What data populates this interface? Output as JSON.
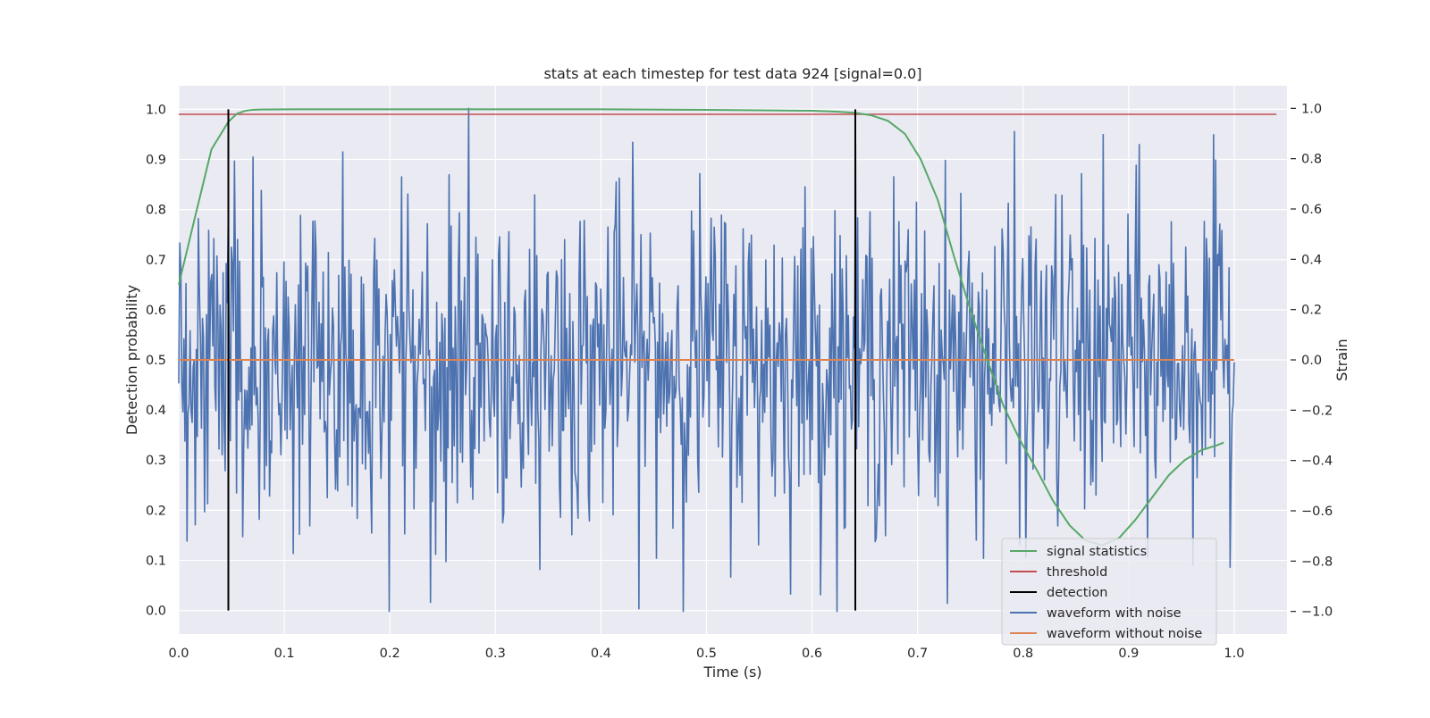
{
  "chart_data": {
    "type": "line",
    "title": "stats at each timestep for test data 924 [signal=0.0]",
    "xlabel": "Time (s)",
    "ylabel_left": "Detection probability",
    "ylabel_right": "Strain",
    "xlim": [
      0.0,
      1.05
    ],
    "ylim_left": [
      -0.047,
      1.047
    ],
    "ylim_right": [
      -1.09,
      1.09
    ],
    "x_ticks": [
      0.0,
      0.1,
      0.2,
      0.3,
      0.4,
      0.5,
      0.6,
      0.7,
      0.8,
      0.9,
      1.0
    ],
    "x_tick_labels": [
      "0.0",
      "0.1",
      "0.2",
      "0.3",
      "0.4",
      "0.5",
      "0.6",
      "0.7",
      "0.8",
      "0.9",
      "1.0"
    ],
    "y_left_ticks": [
      0.0,
      0.1,
      0.2,
      0.3,
      0.4,
      0.5,
      0.6,
      0.7,
      0.8,
      0.9,
      1.0
    ],
    "y_left_tick_labels": [
      "0.0",
      "0.1",
      "0.2",
      "0.3",
      "0.4",
      "0.5",
      "0.6",
      "0.7",
      "0.8",
      "0.9",
      "1.0"
    ],
    "y_right_ticks": [
      -1.0,
      -0.8,
      -0.6,
      -0.4,
      -0.2,
      0.0,
      0.2,
      0.4,
      0.6,
      0.8,
      1.0
    ],
    "y_right_tick_labels": [
      "−1.0",
      "−0.8",
      "−0.6",
      "−0.4",
      "−0.2",
      "0.0",
      "0.2",
      "0.4",
      "0.6",
      "0.8",
      "1.0"
    ],
    "grid": true,
    "legend_position": "lower-right",
    "series": [
      {
        "name": "signal statistics",
        "axis": "left",
        "color": "#55a868",
        "x": [
          0.0,
          0.016,
          0.031,
          0.047,
          0.055,
          0.063,
          0.07,
          0.078,
          0.094,
          0.109,
          0.125,
          0.2,
          0.3,
          0.4,
          0.5,
          0.55,
          0.6,
          0.625,
          0.641,
          0.656,
          0.672,
          0.688,
          0.703,
          0.719,
          0.734,
          0.75,
          0.766,
          0.781,
          0.797,
          0.813,
          0.828,
          0.844,
          0.859,
          0.875,
          0.891,
          0.906,
          0.922,
          0.938,
          0.953,
          0.969,
          0.984,
          0.99
        ],
        "y": [
          0.65,
          0.79,
          0.92,
          0.975,
          0.991,
          0.997,
          0.999,
          0.9995,
          0.9998,
          0.9999,
          0.9999,
          0.9999,
          0.9999,
          0.9999,
          0.999,
          0.998,
          0.997,
          0.995,
          0.993,
          0.988,
          0.977,
          0.951,
          0.9,
          0.82,
          0.71,
          0.6,
          0.5,
          0.41,
          0.34,
          0.28,
          0.22,
          0.17,
          0.14,
          0.13,
          0.145,
          0.18,
          0.225,
          0.27,
          0.3,
          0.32,
          0.33,
          0.335
        ]
      },
      {
        "name": "threshold",
        "axis": "left",
        "color": "#c44e52",
        "x": [
          0.0,
          1.04
        ],
        "y": [
          0.99,
          0.99
        ]
      },
      {
        "name": "detection",
        "axis": "left",
        "color": "#000000",
        "x": [
          0.047,
          0.641
        ],
        "y": [
          0.0,
          1.0
        ]
      },
      {
        "name": "waveform with noise",
        "axis": "right",
        "color": "#4c72b0",
        "x_start": 0.0,
        "x_end": 1.0,
        "count": 1024,
        "y": []
      },
      {
        "name": "waveform without noise",
        "axis": "right",
        "color": "#dd8452",
        "x": [
          0.0,
          1.0
        ],
        "y": [
          0.0,
          0.0
        ]
      }
    ]
  }
}
